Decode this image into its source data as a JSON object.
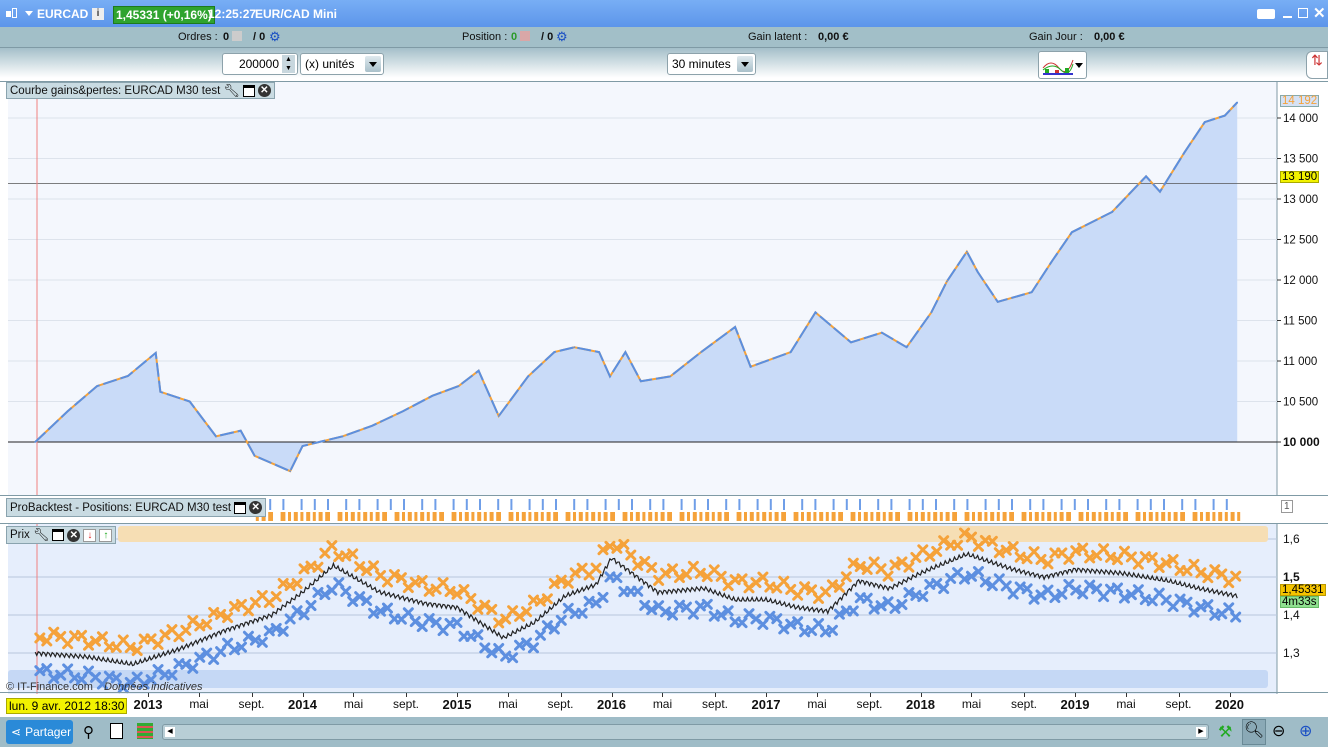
{
  "titlebar": {
    "symbol": "EURCAD",
    "price_badge": "1,45331 (+0,16%)",
    "time": "12:25:27",
    "instrument": "EUR/CAD Mini"
  },
  "infobar": {
    "orders_label": "Ordres :",
    "orders_value": "0",
    "orders_total": "/ 0",
    "position_label": "Position :",
    "position_value": "0",
    "position_total": "/ 0",
    "gain_latent_label": "Gain latent :",
    "gain_latent_value": "0,00 €",
    "gain_jour_label": "Gain Jour :",
    "gain_jour_value": "0,00 €"
  },
  "toolbar": {
    "quantity": "200000",
    "unit": "(x) unités",
    "timeframe": "30 minutes"
  },
  "equity_panel": {
    "title": "Courbe gains&pertes: EURCAD M30 test",
    "current_label": "14 192",
    "crosshair_label": "13 190"
  },
  "positions_panel": {
    "title": "ProBacktest - Positions: EURCAD M30 test",
    "axis_label": "1"
  },
  "price_panel": {
    "title": "Prix",
    "price_label": "1,45331",
    "countdown": "4m33s",
    "watermark": "© IT-Finance.com",
    "disclaimer": "Données indicatives"
  },
  "date_axis": {
    "cursor_date": "lun. 9 avr. 2012 18:30",
    "labels": [
      {
        "t": "2013",
        "year": 2013.0,
        "bold": true
      },
      {
        "t": "mai",
        "year": 2013.33
      },
      {
        "t": "sept.",
        "year": 2013.67
      },
      {
        "t": "2014",
        "year": 2014.0,
        "bold": true
      },
      {
        "t": "mai",
        "year": 2014.33
      },
      {
        "t": "sept.",
        "year": 2014.67
      },
      {
        "t": "2015",
        "year": 2015.0,
        "bold": true
      },
      {
        "t": "mai",
        "year": 2015.33
      },
      {
        "t": "sept.",
        "year": 2015.67
      },
      {
        "t": "2016",
        "year": 2016.0,
        "bold": true
      },
      {
        "t": "mai",
        "year": 2016.33
      },
      {
        "t": "sept.",
        "year": 2016.67
      },
      {
        "t": "2017",
        "year": 2017.0,
        "bold": true
      },
      {
        "t": "mai",
        "year": 2017.33
      },
      {
        "t": "sept.",
        "year": 2017.67
      },
      {
        "t": "2018",
        "year": 2018.0,
        "bold": true
      },
      {
        "t": "mai",
        "year": 2018.33
      },
      {
        "t": "sept.",
        "year": 2018.67
      },
      {
        "t": "2019",
        "year": 2019.0,
        "bold": true
      },
      {
        "t": "mai",
        "year": 2019.33
      },
      {
        "t": "sept.",
        "year": 2019.67
      },
      {
        "t": "2020",
        "year": 2020.0,
        "bold": true
      }
    ]
  },
  "bottombar": {
    "share_label": "Partager"
  },
  "colors": {
    "equity_line": "#5b8fe0",
    "equity_fill": "#c9dbf8",
    "loss_line": "#f5a23a",
    "titlebar": "#5d95ea",
    "price_badge": "#2fa32f"
  },
  "chart_data": [
    {
      "type": "area",
      "title": "Courbe gains&pertes: EURCAD M30 test",
      "baseline": 10000,
      "ylim": [
        9400,
        14500
      ],
      "yticks": [
        {
          "v": 10000,
          "t": "10 000"
        },
        {
          "v": 10500,
          "t": "10 500"
        },
        {
          "v": 11000,
          "t": "11 000"
        },
        {
          "v": 11500,
          "t": "11 500"
        },
        {
          "v": 12000,
          "t": "12 000"
        },
        {
          "v": 12500,
          "t": "12 500"
        },
        {
          "v": 13000,
          "t": "13 000"
        },
        {
          "v": 13500,
          "t": "13 500"
        },
        {
          "v": 14000,
          "t": "14 000"
        }
      ],
      "x": [
        2012.27,
        2012.48,
        2012.67,
        2012.87,
        2013.05,
        2013.08,
        2013.27,
        2013.44,
        2013.6,
        2013.69,
        2013.92,
        2014.0,
        2014.26,
        2014.45,
        2014.65,
        2014.84,
        2015.01,
        2015.14,
        2015.27,
        2015.46,
        2015.63,
        2015.76,
        2015.92,
        2015.99,
        2016.09,
        2016.19,
        2016.38,
        2016.58,
        2016.8,
        2016.9,
        2017.16,
        2017.32,
        2017.55,
        2017.75,
        2017.91,
        2018.07,
        2018.17,
        2018.3,
        2018.37,
        2018.5,
        2018.72,
        2018.85,
        2018.98,
        2019.24,
        2019.46,
        2019.55,
        2019.71,
        2019.84,
        2019.97,
        2020.05
      ],
      "values": [
        10000,
        10380,
        10690,
        10815,
        11100,
        10620,
        10500,
        10070,
        10140,
        9830,
        9640,
        9950,
        10070,
        10200,
        10380,
        10570,
        10690,
        10880,
        10320,
        10810,
        11110,
        11170,
        11110,
        10810,
        11110,
        10750,
        10810,
        11110,
        11420,
        10930,
        11110,
        11600,
        11230,
        11350,
        11170,
        11600,
        11980,
        12350,
        12100,
        11730,
        11850,
        12230,
        12590,
        12840,
        13280,
        13090,
        13580,
        13950,
        14030,
        14192
      ]
    },
    {
      "type": "line",
      "title": "Prix",
      "ylim": [
        1.2,
        1.63
      ],
      "yticks": [
        {
          "v": 1.3,
          "t": "1,3"
        },
        {
          "v": 1.4,
          "t": "1,4"
        },
        {
          "v": 1.5,
          "t": "1,5"
        },
        {
          "v": 1.6,
          "t": "1,6"
        }
      ],
      "x": [
        2012.27,
        2012.6,
        2012.9,
        2013.2,
        2013.5,
        2013.8,
        2014.0,
        2014.2,
        2014.5,
        2014.8,
        2015.0,
        2015.3,
        2015.5,
        2015.7,
        2015.9,
        2016.0,
        2016.3,
        2016.6,
        2016.8,
        2017.0,
        2017.2,
        2017.4,
        2017.6,
        2017.8,
        2018.0,
        2018.3,
        2018.6,
        2018.8,
        2019.0,
        2019.3,
        2019.6,
        2019.8,
        2020.05
      ],
      "values": [
        1.3,
        1.29,
        1.27,
        1.31,
        1.36,
        1.4,
        1.46,
        1.53,
        1.46,
        1.43,
        1.42,
        1.34,
        1.38,
        1.45,
        1.48,
        1.55,
        1.46,
        1.47,
        1.44,
        1.44,
        1.42,
        1.41,
        1.49,
        1.47,
        1.51,
        1.56,
        1.52,
        1.5,
        1.52,
        1.51,
        1.49,
        1.47,
        1.45
      ]
    }
  ]
}
